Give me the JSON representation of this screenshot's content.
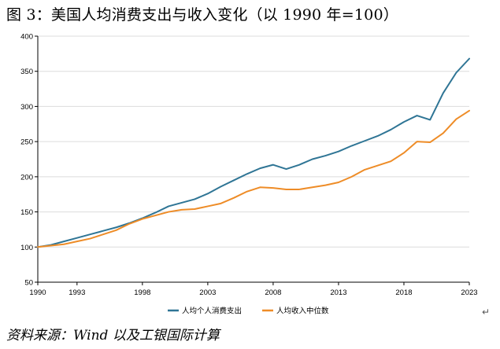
{
  "title": "图 3：美国人均消费支出与收入变化（以 1990 年=100）",
  "source": "资料来源：Wind 以及工银国际计算",
  "paragraph_mark": "↵",
  "colors": {
    "consumption": "#2f7595",
    "income": "#ee8c27",
    "grid": "#dcdcdc",
    "axis": "#000000"
  },
  "chart_data": {
    "type": "line",
    "title": "",
    "xlabel": "",
    "ylabel": "",
    "xlim": [
      1990,
      2023
    ],
    "ylim": [
      50,
      400
    ],
    "xticks": [
      1990,
      1993,
      1998,
      2003,
      2008,
      2013,
      2018,
      2023
    ],
    "yticks": [
      50,
      100,
      150,
      200,
      250,
      300,
      350,
      400
    ],
    "legend_position": "bottom",
    "x": [
      1990,
      1991,
      1992,
      1993,
      1994,
      1995,
      1996,
      1997,
      1998,
      1999,
      2000,
      2001,
      2002,
      2003,
      2004,
      2005,
      2006,
      2007,
      2008,
      2009,
      2010,
      2011,
      2012,
      2013,
      2014,
      2015,
      2016,
      2017,
      2018,
      2019,
      2020,
      2021,
      2022,
      2023
    ],
    "series": [
      {
        "name": "人均个人消费支出",
        "color_key": "consumption",
        "values": [
          100,
          103,
          108,
          113,
          118,
          123,
          128,
          134,
          141,
          149,
          158,
          163,
          168,
          176,
          186,
          195,
          204,
          212,
          217,
          211,
          217,
          225,
          230,
          236,
          244,
          251,
          258,
          267,
          278,
          287,
          281,
          319,
          348,
          368
        ]
      },
      {
        "name": "人均收入中位数",
        "color_key": "income",
        "values": [
          100,
          102,
          104,
          108,
          112,
          118,
          124,
          133,
          140,
          145,
          150,
          153,
          154,
          158,
          162,
          170,
          179,
          185,
          184,
          182,
          182,
          185,
          188,
          192,
          200,
          210,
          216,
          222,
          234,
          250,
          249,
          262,
          282,
          294
        ]
      }
    ]
  }
}
